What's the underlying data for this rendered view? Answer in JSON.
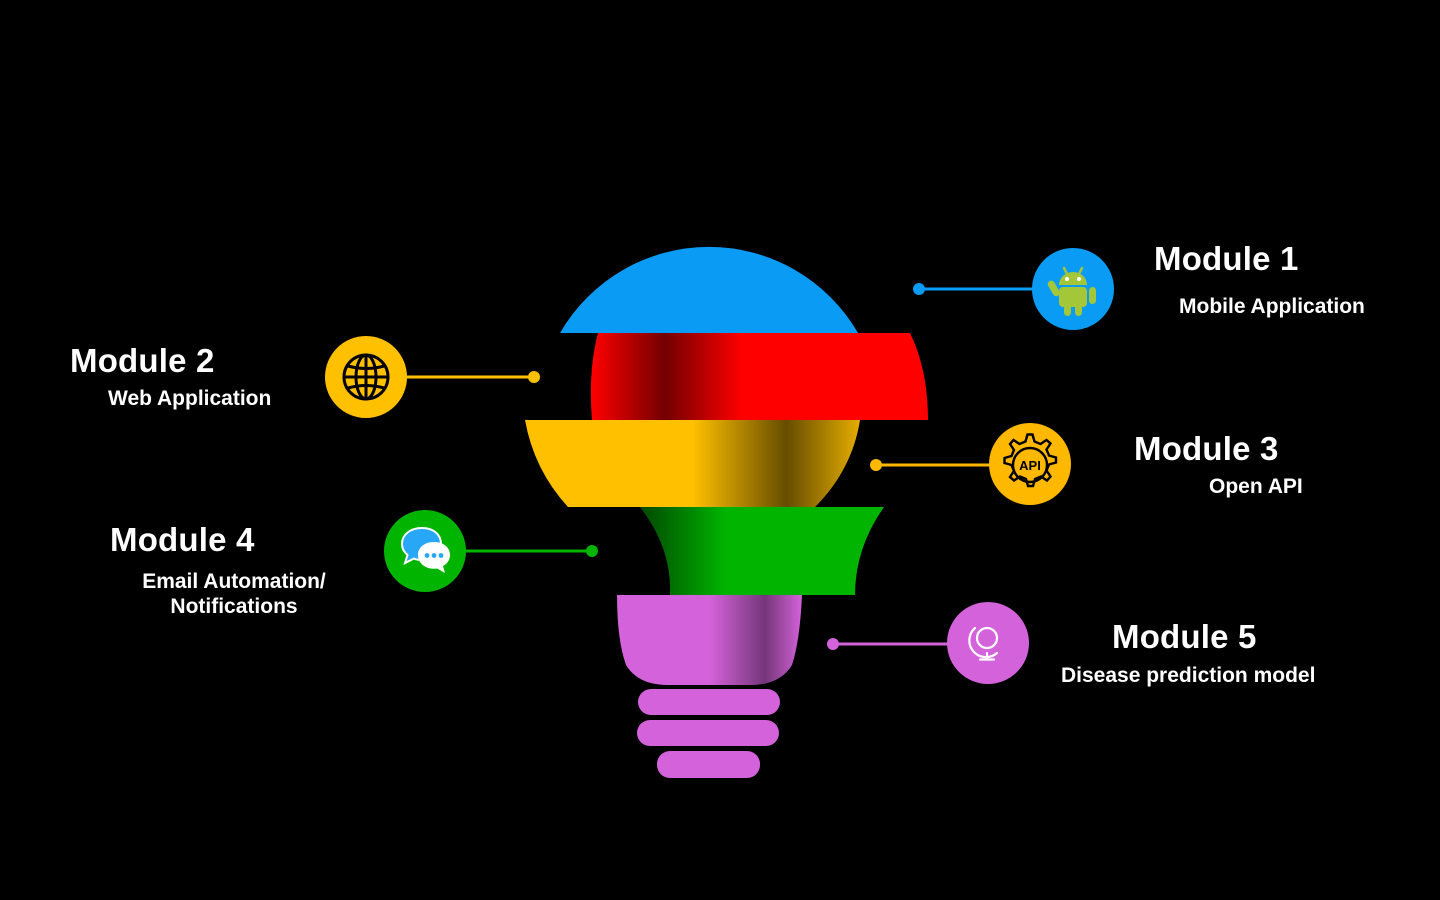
{
  "modules": [
    {
      "id": "m1",
      "title": "Module 1",
      "subtitle_lines": [
        "Mobile Application"
      ],
      "color": "#0A9CF5",
      "icon": "android-icon"
    },
    {
      "id": "m2",
      "title": "Module 2",
      "subtitle_lines": [
        "Web Application"
      ],
      "color": "#FFC000",
      "icon": "globe-icon"
    },
    {
      "id": "m3",
      "title": "Module 3",
      "subtitle_lines": [
        "Open API"
      ],
      "color": "#FFB800",
      "icon": "api-gear-icon",
      "icon_text": "API"
    },
    {
      "id": "m4",
      "title": "Module 4",
      "subtitle_lines": [
        "Email Automation/",
        "Notifications"
      ],
      "color": "#00B400",
      "icon": "message-bubbles-icon"
    },
    {
      "id": "m5",
      "title": "Module 5",
      "subtitle_lines": [
        "Disease prediction model"
      ],
      "color": "#D462DB",
      "icon": "globe-stand-icon"
    }
  ],
  "bulb_colors": {
    "blue": "#0A9CF5",
    "red": "#FF0000",
    "yellow": "#FFC000",
    "green": "#00B400",
    "purple": "#D462DB"
  }
}
